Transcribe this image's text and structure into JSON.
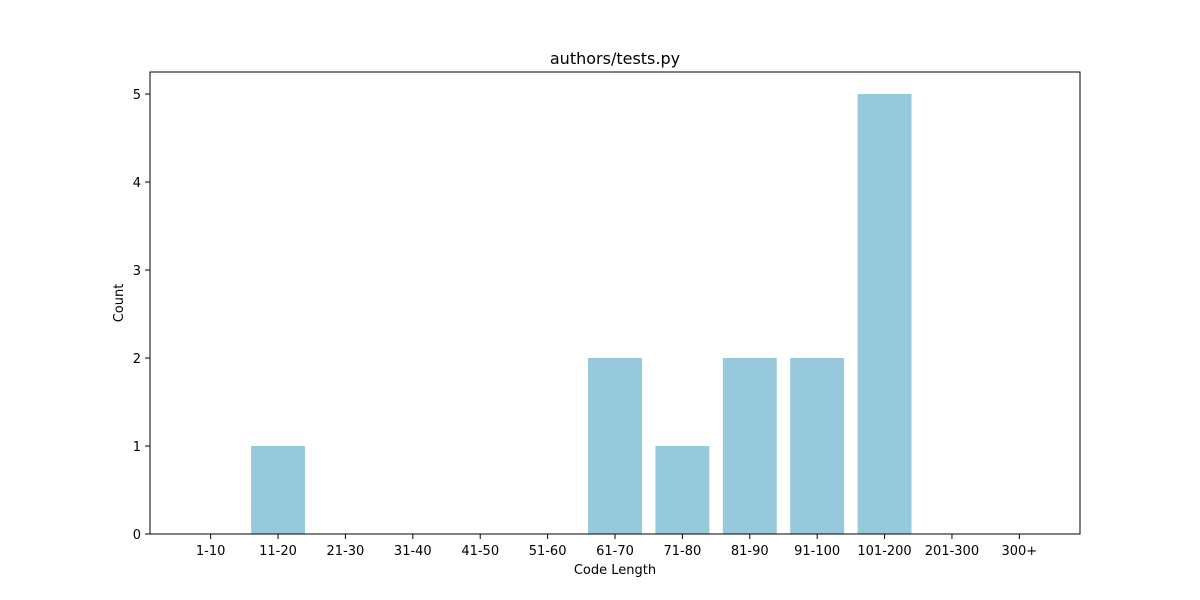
{
  "chart_data": {
    "type": "bar",
    "title": "authors/tests.py",
    "xlabel": "Code Length",
    "ylabel": "Count",
    "categories": [
      "1-10",
      "11-20",
      "21-30",
      "31-40",
      "41-50",
      "51-60",
      "61-70",
      "71-80",
      "81-90",
      "91-100",
      "101-200",
      "201-300",
      "300+"
    ],
    "values": [
      0,
      1,
      0,
      0,
      0,
      0,
      2,
      1,
      2,
      2,
      5,
      0,
      0
    ],
    "ylim": [
      0,
      5.25
    ],
    "yticks": [
      0,
      1,
      2,
      3,
      4,
      5
    ],
    "grid": false,
    "bar_color": "#96c9dc"
  }
}
